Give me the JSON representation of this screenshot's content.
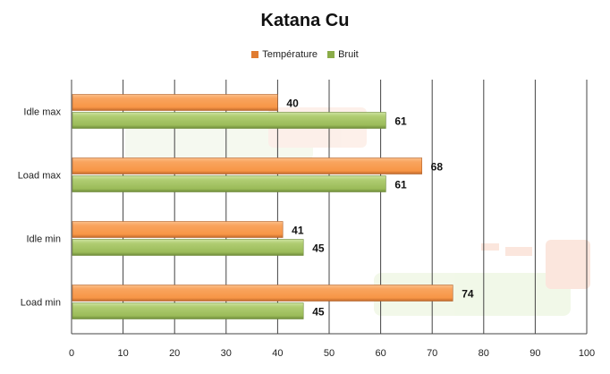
{
  "chart_data": {
    "type": "bar",
    "orientation": "horizontal",
    "title": "Katana Cu",
    "categories": [
      "Idle  max",
      "Load max",
      "Idle  min",
      "Load min"
    ],
    "series": [
      {
        "name": "Température",
        "color": "#f79646",
        "values": [
          40,
          68,
          41,
          74
        ]
      },
      {
        "name": "Bruit",
        "color": "#9bbb59",
        "values": [
          61,
          61,
          45,
          45
        ]
      }
    ],
    "xlim": [
      0,
      100
    ],
    "xticks": [
      0,
      10,
      20,
      30,
      40,
      50,
      60,
      70,
      80,
      90,
      100
    ],
    "grid": true,
    "legend_position": "top",
    "xlabel": "",
    "ylabel": ""
  }
}
